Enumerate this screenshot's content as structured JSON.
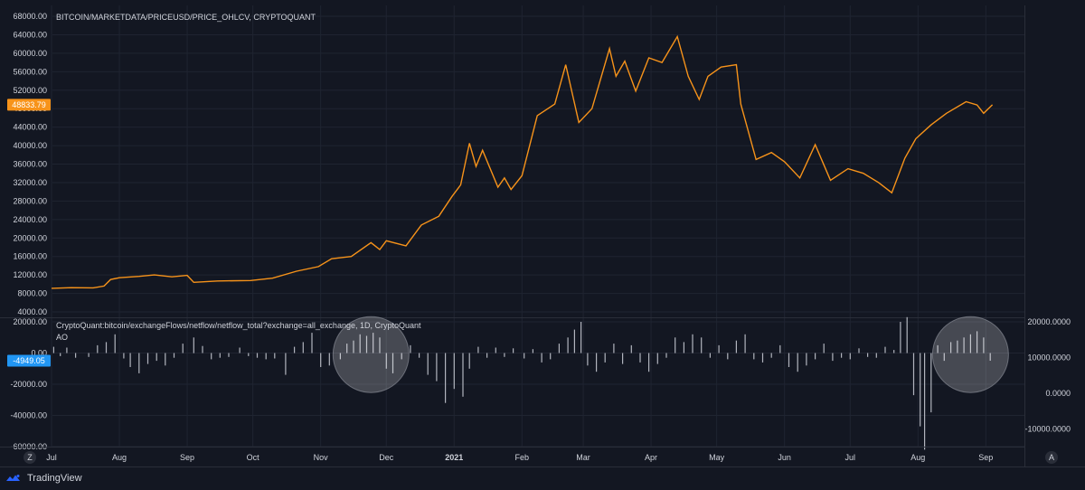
{
  "brand": {
    "name": "TradingView"
  },
  "buttons": {
    "z_label": "Z",
    "a_label": "A"
  },
  "colors": {
    "background": "#131722",
    "grid": "#1f2431",
    "price_line": "#f7931a",
    "price_badge": "#f7931a",
    "flow_bar": "#b2b5be",
    "flow_badge": "#2196f3",
    "highlight": "#ffffff"
  },
  "chart_data": [
    {
      "type": "line",
      "title": "BITCOIN/MARKETDATA/PRICEUSD/PRICE_OHLCV, CRYPTOQUANT",
      "ylim": [
        4000,
        68000
      ],
      "y_ticks": [
        "68000.00",
        "64000.00",
        "60000.00",
        "56000.00",
        "52000.00",
        "48000.00",
        "44000.00",
        "40000.00",
        "36000.00",
        "32000.00",
        "28000.00",
        "24000.00",
        "20000.00",
        "16000.00",
        "12000.00",
        "8000.00",
        "4000.00"
      ],
      "last_value_label": "48833.79",
      "x_ticks": [
        "Jul",
        "Aug",
        "Sep",
        "Oct",
        "Nov",
        "Dec",
        "2021",
        "Feb",
        "Mar",
        "Apr",
        "May",
        "Jun",
        "Jul",
        "Aug",
        "Sep"
      ],
      "x_start": "2020-07-01",
      "x_end": "2021-09-05",
      "series": [
        {
          "points": [
            [
              "2020-07-01",
              9100
            ],
            [
              "2020-07-10",
              9250
            ],
            [
              "2020-07-20",
              9200
            ],
            [
              "2020-07-25",
              9600
            ],
            [
              "2020-07-28",
              11000
            ],
            [
              "2020-08-01",
              11400
            ],
            [
              "2020-08-10",
              11700
            ],
            [
              "2020-08-17",
              12000
            ],
            [
              "2020-08-25",
              11600
            ],
            [
              "2020-09-01",
              11900
            ],
            [
              "2020-09-04",
              10400
            ],
            [
              "2020-09-15",
              10700
            ],
            [
              "2020-09-30",
              10800
            ],
            [
              "2020-10-10",
              11300
            ],
            [
              "2020-10-21",
              12800
            ],
            [
              "2020-10-31",
              13800
            ],
            [
              "2020-11-06",
              15500
            ],
            [
              "2020-11-15",
              16000
            ],
            [
              "2020-11-24",
              19000
            ],
            [
              "2020-11-28",
              17500
            ],
            [
              "2020-12-01",
              19400
            ],
            [
              "2020-12-10",
              18300
            ],
            [
              "2020-12-17",
              22800
            ],
            [
              "2020-12-25",
              24700
            ],
            [
              "2020-12-31",
              29000
            ],
            [
              "2021-01-04",
              31500
            ],
            [
              "2021-01-08",
              40500
            ],
            [
              "2021-01-11",
              35500
            ],
            [
              "2021-01-14",
              39000
            ],
            [
              "2021-01-21",
              31000
            ],
            [
              "2021-01-24",
              33000
            ],
            [
              "2021-01-27",
              30500
            ],
            [
              "2021-02-01",
              33500
            ],
            [
              "2021-02-08",
              46500
            ],
            [
              "2021-02-16",
              49000
            ],
            [
              "2021-02-21",
              57500
            ],
            [
              "2021-02-27",
              45000
            ],
            [
              "2021-03-05",
              48000
            ],
            [
              "2021-03-13",
              61000
            ],
            [
              "2021-03-16",
              55000
            ],
            [
              "2021-03-20",
              58300
            ],
            [
              "2021-03-25",
              51800
            ],
            [
              "2021-03-31",
              59000
            ],
            [
              "2021-04-06",
              58000
            ],
            [
              "2021-04-13",
              63600
            ],
            [
              "2021-04-18",
              55000
            ],
            [
              "2021-04-23",
              50000
            ],
            [
              "2021-04-27",
              55000
            ],
            [
              "2021-05-03",
              57000
            ],
            [
              "2021-05-10",
              57500
            ],
            [
              "2021-05-12",
              49000
            ],
            [
              "2021-05-19",
              37000
            ],
            [
              "2021-05-26",
              38500
            ],
            [
              "2021-06-01",
              36500
            ],
            [
              "2021-06-08",
              33000
            ],
            [
              "2021-06-15",
              40200
            ],
            [
              "2021-06-22",
              32500
            ],
            [
              "2021-06-30",
              35000
            ],
            [
              "2021-07-07",
              34000
            ],
            [
              "2021-07-14",
              32000
            ],
            [
              "2021-07-20",
              29800
            ],
            [
              "2021-07-26",
              37300
            ],
            [
              "2021-07-31",
              41500
            ],
            [
              "2021-08-07",
              44500
            ],
            [
              "2021-08-14",
              47000
            ],
            [
              "2021-08-23",
              49500
            ],
            [
              "2021-08-28",
              48800
            ],
            [
              "2021-08-31",
              47000
            ],
            [
              "2021-09-04",
              48833.79
            ]
          ]
        }
      ]
    },
    {
      "type": "bar",
      "title": "CryptoQuant:bitcoin/exchangeFlows/netflow/netflow_total?exchange=all_exchange, 1D, CryptoQuant",
      "subtitle": "AO",
      "ylim": [
        -60000,
        20000
      ],
      "y_ticks": [
        "20000.00",
        "0.00",
        "-20000.00",
        "-40000.00",
        "-60000.00"
      ],
      "secondary_y_ticks": [
        "20000.0000",
        "10000.0000",
        "0.0000",
        "-10000.0000"
      ],
      "secondary_ylim": [
        -15000,
        20000
      ],
      "last_value_label": "-4949.05",
      "highlights": [
        {
          "x_center": "2020-11-24",
          "y_center": -1000,
          "label": ""
        },
        {
          "x_center": "2021-08-25",
          "y_center": -1000,
          "label": ""
        }
      ],
      "bars": [
        [
          "2020-07-02",
          4000
        ],
        [
          "2020-07-05",
          -2000
        ],
        [
          "2020-07-08",
          3500
        ],
        [
          "2020-07-12",
          -3000
        ],
        [
          "2020-07-18",
          -2500
        ],
        [
          "2020-07-22",
          5000
        ],
        [
          "2020-07-26",
          7000
        ],
        [
          "2020-07-30",
          12000
        ],
        [
          "2020-08-03",
          -3500
        ],
        [
          "2020-08-06",
          -9000
        ],
        [
          "2020-08-10",
          -13000
        ],
        [
          "2020-08-14",
          -7000
        ],
        [
          "2020-08-18",
          -5000
        ],
        [
          "2020-08-22",
          -8000
        ],
        [
          "2020-08-26",
          -3000
        ],
        [
          "2020-08-30",
          6000
        ],
        [
          "2020-09-04",
          10000
        ],
        [
          "2020-09-08",
          4500
        ],
        [
          "2020-09-12",
          -4000
        ],
        [
          "2020-09-16",
          -3000
        ],
        [
          "2020-09-20",
          -2500
        ],
        [
          "2020-09-25",
          3500
        ],
        [
          "2020-09-29",
          -2000
        ],
        [
          "2020-10-03",
          -3000
        ],
        [
          "2020-10-07",
          -4000
        ],
        [
          "2020-10-11",
          -3500
        ],
        [
          "2020-10-16",
          -14000
        ],
        [
          "2020-10-20",
          4000
        ],
        [
          "2020-10-24",
          7000
        ],
        [
          "2020-10-28",
          13000
        ],
        [
          "2020-11-01",
          -9000
        ],
        [
          "2020-11-05",
          -8000
        ],
        [
          "2020-11-10",
          -4000
        ],
        [
          "2020-11-13",
          6000
        ],
        [
          "2020-11-16",
          8000
        ],
        [
          "2020-11-19",
          12000
        ],
        [
          "2020-11-22",
          11000
        ],
        [
          "2020-11-25",
          13000
        ],
        [
          "2020-11-28",
          10000
        ],
        [
          "2020-12-01",
          -10000
        ],
        [
          "2020-12-04",
          -13000
        ],
        [
          "2020-12-08",
          -4000
        ],
        [
          "2020-12-12",
          5000
        ],
        [
          "2020-12-16",
          -3000
        ],
        [
          "2020-12-20",
          -14000
        ],
        [
          "2020-12-24",
          -18000
        ],
        [
          "2020-12-28",
          -32000
        ],
        [
          "2021-01-01",
          -23000
        ],
        [
          "2021-01-05",
          -28000
        ],
        [
          "2021-01-08",
          -10000
        ],
        [
          "2021-01-12",
          4000
        ],
        [
          "2021-01-16",
          -3000
        ],
        [
          "2021-01-20",
          3500
        ],
        [
          "2021-01-24",
          -2500
        ],
        [
          "2021-01-28",
          3000
        ],
        [
          "2021-02-02",
          -3500
        ],
        [
          "2021-02-06",
          2500
        ],
        [
          "2021-02-10",
          -6000
        ],
        [
          "2021-02-14",
          -4000
        ],
        [
          "2021-02-18",
          6000
        ],
        [
          "2021-02-22",
          10000
        ],
        [
          "2021-02-25",
          15000
        ],
        [
          "2021-02-28",
          20000
        ],
        [
          "2021-03-03",
          -8000
        ],
        [
          "2021-03-07",
          -12000
        ],
        [
          "2021-03-11",
          -6000
        ],
        [
          "2021-03-15",
          6000
        ],
        [
          "2021-03-19",
          -7000
        ],
        [
          "2021-03-23",
          5000
        ],
        [
          "2021-03-27",
          -6000
        ],
        [
          "2021-03-31",
          -12000
        ],
        [
          "2021-04-04",
          -7000
        ],
        [
          "2021-04-08",
          -3000
        ],
        [
          "2021-04-12",
          10000
        ],
        [
          "2021-04-16",
          7000
        ],
        [
          "2021-04-20",
          12000
        ],
        [
          "2021-04-24",
          10000
        ],
        [
          "2021-04-28",
          -3000
        ],
        [
          "2021-05-02",
          5000
        ],
        [
          "2021-05-06",
          -4000
        ],
        [
          "2021-05-10",
          8000
        ],
        [
          "2021-05-14",
          12000
        ],
        [
          "2021-05-18",
          -4000
        ],
        [
          "2021-05-22",
          -6000
        ],
        [
          "2021-05-26",
          -3000
        ],
        [
          "2021-05-30",
          5000
        ],
        [
          "2021-06-03",
          -9000
        ],
        [
          "2021-06-07",
          -12000
        ],
        [
          "2021-06-11",
          -8000
        ],
        [
          "2021-06-15",
          -4000
        ],
        [
          "2021-06-19",
          6000
        ],
        [
          "2021-06-23",
          -5000
        ],
        [
          "2021-06-27",
          -3000
        ],
        [
          "2021-07-01",
          -4000
        ],
        [
          "2021-07-05",
          3000
        ],
        [
          "2021-07-09",
          -2500
        ],
        [
          "2021-07-13",
          -3000
        ],
        [
          "2021-07-17",
          4000
        ],
        [
          "2021-07-21",
          2000
        ],
        [
          "2021-07-24",
          20000
        ],
        [
          "2021-07-27",
          23000
        ],
        [
          "2021-07-30",
          -27000
        ],
        [
          "2021-08-02",
          -47000
        ],
        [
          "2021-08-04",
          -62000
        ],
        [
          "2021-08-07",
          -38000
        ],
        [
          "2021-08-10",
          5000
        ],
        [
          "2021-08-13",
          -5000
        ],
        [
          "2021-08-16",
          7000
        ],
        [
          "2021-08-19",
          8000
        ],
        [
          "2021-08-22",
          10000
        ],
        [
          "2021-08-25",
          12000
        ],
        [
          "2021-08-28",
          14000
        ],
        [
          "2021-08-31",
          10000
        ],
        [
          "2021-09-03",
          -4949.05
        ]
      ]
    }
  ]
}
